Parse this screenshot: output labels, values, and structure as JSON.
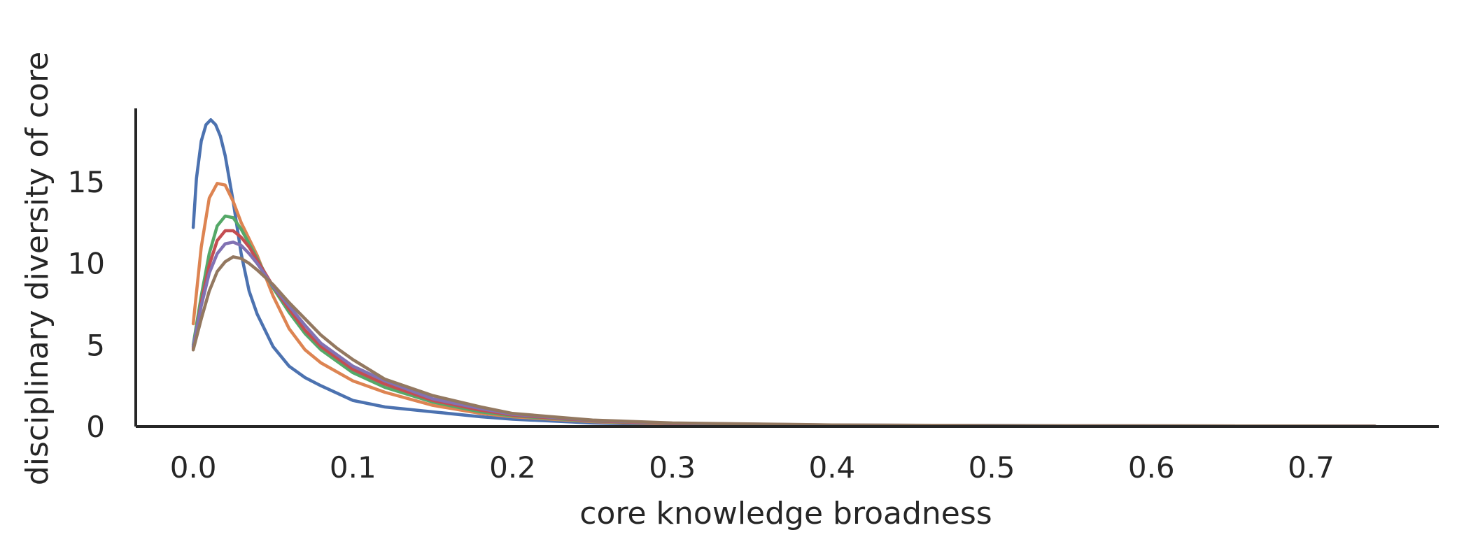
{
  "chart_data": {
    "type": "line",
    "title": "",
    "xlabel": "core knowledge broadness",
    "ylabel": "disciplinary diversity of core",
    "xlim": [
      -0.036,
      0.78
    ],
    "ylim": [
      0,
      19.5
    ],
    "xticks": [
      0.0,
      0.1,
      0.2,
      0.3,
      0.4,
      0.5,
      0.6,
      0.7
    ],
    "xtick_labels": [
      "0.0",
      "0.1",
      "0.2",
      "0.3",
      "0.4",
      "0.5",
      "0.6",
      "0.7"
    ],
    "yticks": [
      0,
      5,
      10,
      15
    ],
    "ytick_labels": [
      "0",
      "5",
      "10",
      "15"
    ],
    "grid": false,
    "legend": "none",
    "series": [
      {
        "color": "#4c72b0",
        "x": [
          0.0,
          0.002,
          0.005,
          0.008,
          0.011,
          0.014,
          0.017,
          0.02,
          0.025,
          0.03,
          0.035,
          0.04,
          0.05,
          0.06,
          0.07,
          0.08,
          0.1,
          0.12,
          0.15,
          0.18,
          0.2,
          0.25,
          0.3,
          0.4,
          0.5,
          0.6,
          0.7,
          0.74
        ],
        "y": [
          12.2,
          15.2,
          17.5,
          18.5,
          18.8,
          18.5,
          17.8,
          16.6,
          13.8,
          10.6,
          8.3,
          6.9,
          4.9,
          3.7,
          3.0,
          2.5,
          1.6,
          1.2,
          0.9,
          0.6,
          0.45,
          0.22,
          0.12,
          0.07,
          0.07,
          0.04,
          0.03,
          0.02
        ]
      },
      {
        "color": "#dd8452",
        "x": [
          0.0,
          0.005,
          0.01,
          0.015,
          0.02,
          0.025,
          0.03,
          0.04,
          0.05,
          0.06,
          0.07,
          0.08,
          0.1,
          0.12,
          0.15,
          0.18,
          0.2,
          0.25,
          0.3,
          0.4,
          0.5,
          0.6,
          0.7,
          0.74
        ],
        "y": [
          6.3,
          11.0,
          14.0,
          14.9,
          14.8,
          13.8,
          12.5,
          10.5,
          8.0,
          6.0,
          4.7,
          3.9,
          2.8,
          2.1,
          1.3,
          0.8,
          0.6,
          0.3,
          0.15,
          0.07,
          0.05,
          0.04,
          0.03,
          0.02
        ]
      },
      {
        "color": "#55a868",
        "x": [
          0.0,
          0.005,
          0.01,
          0.015,
          0.02,
          0.025,
          0.03,
          0.035,
          0.04,
          0.05,
          0.06,
          0.07,
          0.08,
          0.1,
          0.12,
          0.15,
          0.18,
          0.2,
          0.25,
          0.3,
          0.4,
          0.5,
          0.6,
          0.7,
          0.74
        ],
        "y": [
          5.0,
          8.0,
          10.6,
          12.3,
          12.9,
          12.8,
          12.1,
          11.2,
          10.3,
          8.5,
          7.0,
          5.7,
          4.7,
          3.3,
          2.4,
          1.5,
          0.9,
          0.65,
          0.33,
          0.17,
          0.08,
          0.05,
          0.04,
          0.03,
          0.02
        ]
      },
      {
        "color": "#c44e52",
        "x": [
          0.0,
          0.005,
          0.01,
          0.015,
          0.02,
          0.025,
          0.03,
          0.035,
          0.04,
          0.05,
          0.06,
          0.07,
          0.08,
          0.1,
          0.12,
          0.15,
          0.18,
          0.2,
          0.25,
          0.3,
          0.4,
          0.5,
          0.6,
          0.7,
          0.74
        ],
        "y": [
          4.8,
          7.6,
          9.9,
          11.4,
          12.0,
          12.0,
          11.6,
          11.0,
          10.2,
          8.6,
          7.2,
          5.9,
          4.9,
          3.5,
          2.6,
          1.6,
          1.0,
          0.7,
          0.35,
          0.18,
          0.08,
          0.05,
          0.04,
          0.03,
          0.02
        ]
      },
      {
        "color": "#8172b3",
        "x": [
          0.0,
          0.005,
          0.01,
          0.015,
          0.02,
          0.025,
          0.03,
          0.035,
          0.04,
          0.05,
          0.06,
          0.07,
          0.08,
          0.1,
          0.12,
          0.15,
          0.18,
          0.2,
          0.25,
          0.3,
          0.4,
          0.5,
          0.6,
          0.7,
          0.74
        ],
        "y": [
          4.9,
          7.4,
          9.4,
          10.6,
          11.2,
          11.3,
          11.1,
          10.6,
          10.0,
          8.6,
          7.4,
          6.2,
          5.1,
          3.7,
          2.8,
          1.7,
          1.1,
          0.75,
          0.38,
          0.2,
          0.09,
          0.06,
          0.04,
          0.03,
          0.02
        ]
      },
      {
        "color": "#937860",
        "x": [
          0.0,
          0.005,
          0.01,
          0.015,
          0.02,
          0.025,
          0.03,
          0.035,
          0.04,
          0.05,
          0.06,
          0.07,
          0.08,
          0.09,
          0.1,
          0.12,
          0.15,
          0.18,
          0.2,
          0.25,
          0.3,
          0.4,
          0.5,
          0.6,
          0.7,
          0.74
        ],
        "y": [
          4.7,
          6.6,
          8.3,
          9.5,
          10.1,
          10.4,
          10.3,
          10.0,
          9.6,
          8.7,
          7.6,
          6.6,
          5.6,
          4.8,
          4.1,
          2.9,
          1.9,
          1.2,
          0.8,
          0.4,
          0.22,
          0.1,
          0.06,
          0.04,
          0.03,
          0.02
        ]
      }
    ]
  }
}
